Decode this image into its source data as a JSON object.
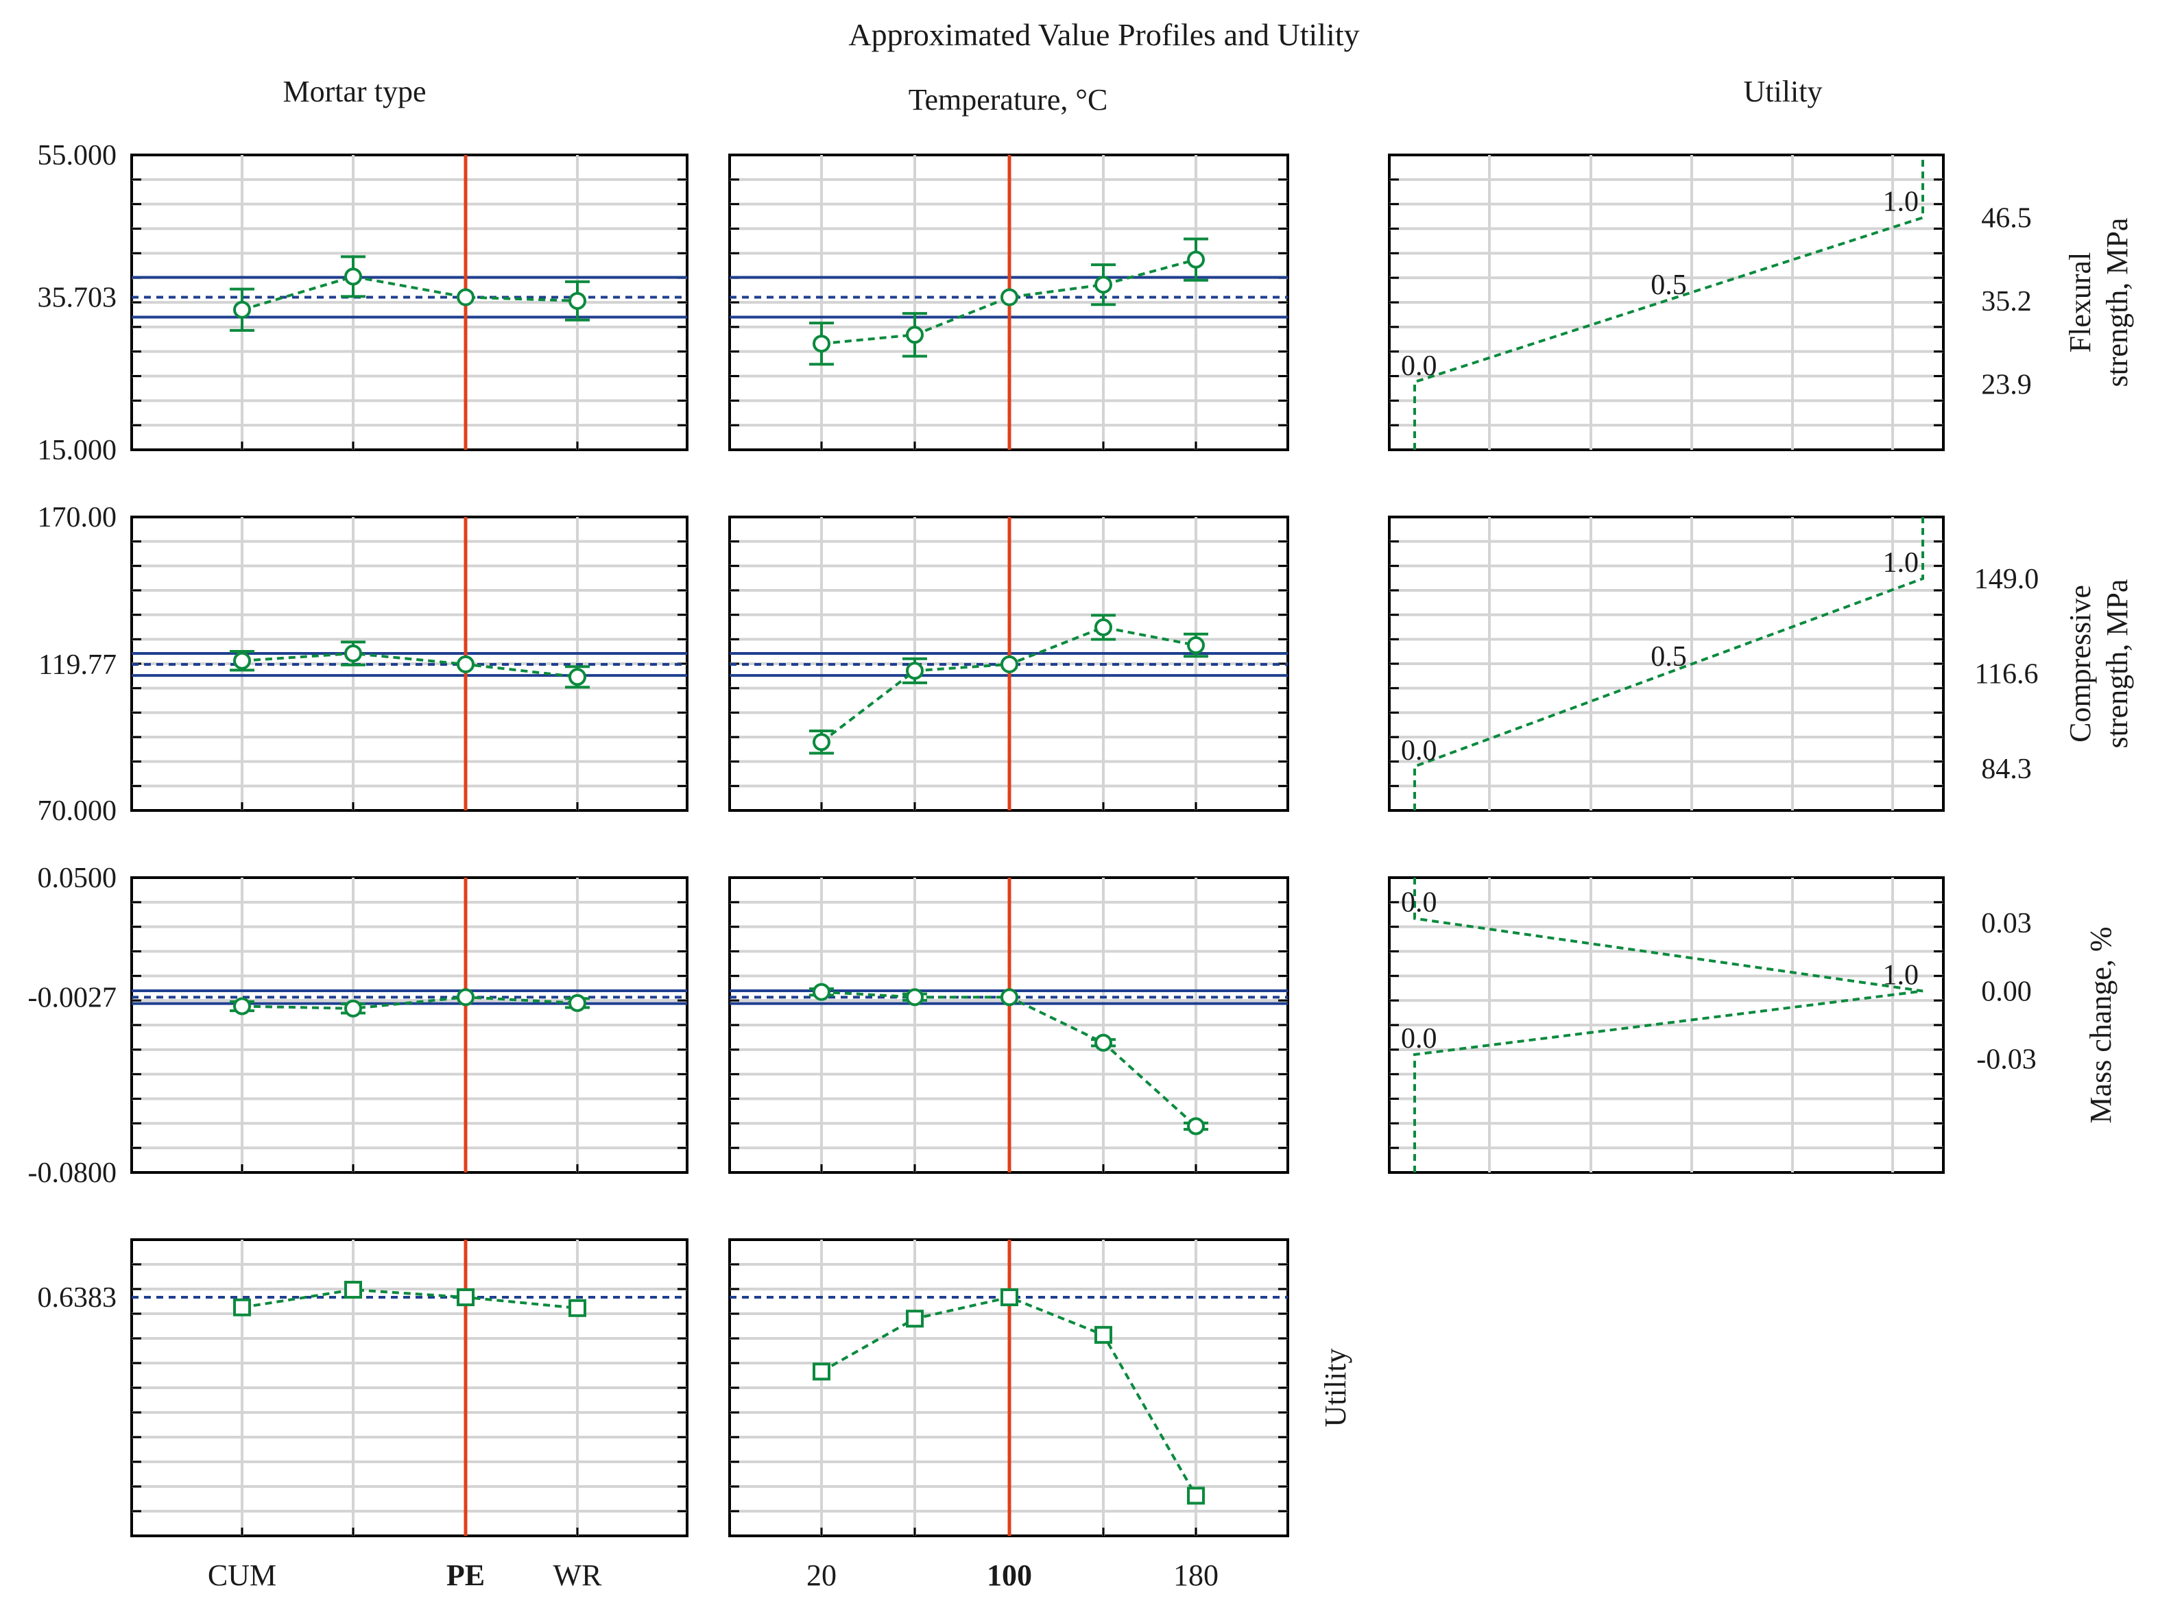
{
  "chart_data": {
    "type": "line",
    "title": "Approximated Value Profiles and Utility",
    "columns": {
      "mortar": "Mortar type",
      "temperature": "Temperature,  °C",
      "utility": "Utility"
    },
    "colors": {
      "profile": "#0b8a3e",
      "mean_line": "#1f3f8f",
      "current_value": "#e0401a",
      "grid": "#d4d4d4",
      "frame": "#000000"
    },
    "factors": {
      "mortar": {
        "categories": [
          "CUM",
          "",
          "PE",
          "WR"
        ],
        "tick_labels": [
          "CUM",
          "",
          "PE",
          "WR"
        ],
        "current_index": 2,
        "current_label": "PE"
      },
      "temperature": {
        "x": [
          20,
          60,
          100,
          140,
          180
        ],
        "tick_labels": [
          "20",
          "",
          "100",
          "",
          "180"
        ],
        "current_value": 100,
        "current_label": "100"
      }
    },
    "responses": [
      {
        "key": "flexural",
        "label_lines": [
          "Flexural",
          "strength, MPa"
        ],
        "ylim": [
          15.0,
          55.0
        ],
        "y_tick_labels": [
          "55.000",
          "35.703",
          "15.000"
        ],
        "y_tick_values": [
          55.0,
          35.703,
          15.0
        ],
        "current": 35.703,
        "ci": [
          33.0,
          38.4
        ],
        "mortar": {
          "mean": [
            34.0,
            38.5,
            35.7,
            35.2
          ],
          "lo": [
            31.2,
            35.8,
            35.7,
            32.6
          ],
          "hi": [
            36.8,
            41.2,
            35.7,
            37.8
          ]
        },
        "temperature": {
          "mean": [
            29.4,
            30.6,
            35.7,
            37.4,
            40.8
          ],
          "lo": [
            26.6,
            27.7,
            35.7,
            34.7,
            38.0
          ],
          "hi": [
            32.2,
            33.5,
            35.7,
            40.1,
            43.6
          ]
        },
        "desirability": {
          "ylim": [
            15.0,
            55.0
          ],
          "tick_labels": [
            "46.5",
            "35.2",
            "23.9"
          ],
          "tick_values": [
            46.5,
            35.2,
            23.9
          ],
          "points": [
            [
              0.0,
              15.0
            ],
            [
              0.0,
              24.2
            ],
            [
              1.0,
              46.5
            ],
            [
              1.0,
              55.0
            ]
          ],
          "annotations": [
            {
              "label": "0.0",
              "u": 0.0,
              "y": 24.2
            },
            {
              "label": "0.5",
              "u": 0.5,
              "y": 35.2
            },
            {
              "label": "1.0",
              "u": 1.0,
              "y": 46.5
            }
          ]
        }
      },
      {
        "key": "compressive",
        "label_lines": [
          "Compressive",
          "strength, MPa"
        ],
        "ylim": [
          70.0,
          170.0
        ],
        "y_tick_labels": [
          "170.00",
          "119.77",
          "70.000"
        ],
        "y_tick_values": [
          170.0,
          119.77,
          70.0
        ],
        "current": 119.77,
        "ci": [
          116.0,
          123.5
        ],
        "mortar": {
          "mean": [
            121.0,
            123.5,
            119.8,
            115.5
          ],
          "lo": [
            117.8,
            119.6,
            119.8,
            112.0
          ],
          "hi": [
            124.2,
            127.4,
            119.8,
            119.0
          ]
        },
        "temperature": {
          "mean": [
            93.3,
            117.6,
            119.8,
            132.4,
            126.3
          ],
          "lo": [
            89.5,
            113.5,
            119.8,
            128.3,
            122.5
          ],
          "hi": [
            97.1,
            121.7,
            119.8,
            136.5,
            130.1
          ]
        },
        "desirability": {
          "ylim": [
            70.0,
            170.0
          ],
          "tick_labels": [
            "149.0",
            "116.6",
            "84.3"
          ],
          "tick_values": [
            149.0,
            116.6,
            84.3
          ],
          "points": [
            [
              0.0,
              70.0
            ],
            [
              0.0,
              85.0
            ],
            [
              1.0,
              149.0
            ],
            [
              1.0,
              170.0
            ]
          ],
          "annotations": [
            {
              "label": "0.0",
              "u": 0.0,
              "y": 85.0
            },
            {
              "label": "0.5",
              "u": 0.5,
              "y": 117.0
            },
            {
              "label": "1.0",
              "u": 1.0,
              "y": 149.0
            }
          ]
        }
      },
      {
        "key": "mass",
        "label_lines": [
          "Mass change, %"
        ],
        "ylim": [
          -0.08,
          0.05
        ],
        "y_tick_labels": [
          "0.0500",
          "-0.0027",
          "-0.0800"
        ],
        "y_tick_values": [
          0.05,
          -0.0027,
          -0.08
        ],
        "current": -0.0027,
        "ci": [
          -0.0055,
          0.0001
        ],
        "mortar": {
          "mean": [
            -0.0067,
            -0.0077,
            -0.0027,
            -0.0053
          ],
          "lo": [
            -0.0087,
            -0.0097,
            -0.0027,
            -0.0073
          ],
          "hi": [
            -0.0047,
            -0.0057,
            -0.0027,
            -0.0033
          ]
        },
        "temperature": {
          "mean": [
            -0.0004,
            -0.0027,
            -0.0027,
            -0.0228,
            -0.0596
          ],
          "lo": [
            -0.0018,
            -0.0041,
            -0.0027,
            -0.0242,
            -0.061
          ],
          "hi": [
            0.001,
            -0.0013,
            -0.0027,
            -0.0214,
            -0.0582
          ]
        },
        "desirability": {
          "ylim": [
            -0.08,
            0.05
          ],
          "tick_labels": [
            "0.03",
            "0.00",
            "-0.03"
          ],
          "tick_values": [
            0.03,
            0.0,
            -0.03
          ],
          "points": [
            [
              0.0,
              0.05
            ],
            [
              0.0,
              0.032
            ],
            [
              1.0,
              0.0
            ],
            [
              0.0,
              -0.028
            ],
            [
              0.0,
              -0.08
            ]
          ],
          "annotations": [
            {
              "label": "0.0",
              "u": 0.0,
              "y": 0.032
            },
            {
              "label": "1.0",
              "u": 1.0,
              "y": 0.0
            },
            {
              "label": "0.0",
              "u": 0.0,
              "y": -0.028
            }
          ]
        }
      }
    ],
    "utility_row": {
      "label": "Utility",
      "ylim": [
        0.3,
        0.72
      ],
      "y_tick_labels": [
        "0.6383"
      ],
      "y_tick_values": [
        0.6383
      ],
      "current": 0.6383,
      "mortar": [
        0.624,
        0.649,
        0.6383,
        0.623
      ],
      "temperature": [
        0.533,
        0.608,
        0.6383,
        0.585,
        0.357
      ]
    }
  }
}
